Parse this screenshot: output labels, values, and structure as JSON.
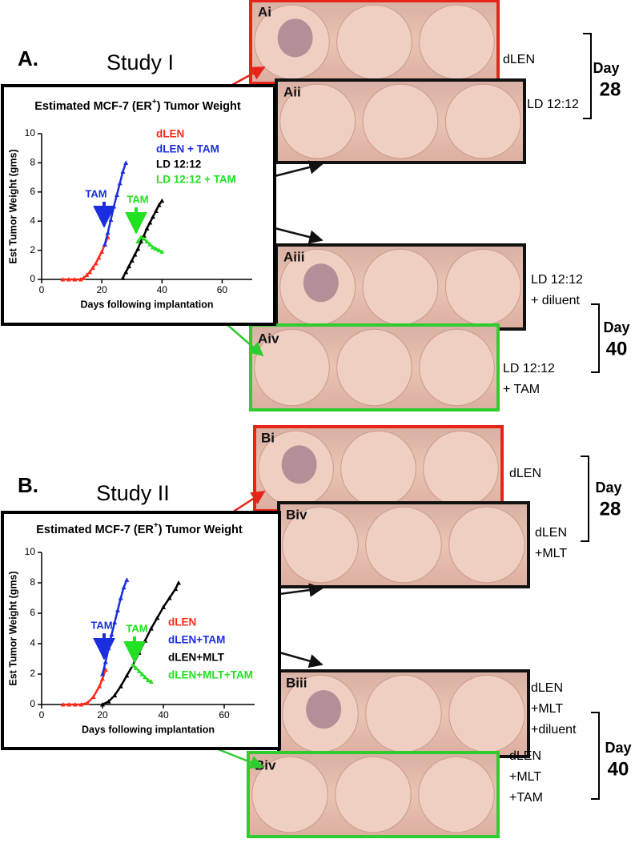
{
  "chart_data": [
    {
      "type": "line",
      "title_parts": [
        "Estimated MCF-7 (ER",
        "+",
        ") Tumor Weight"
      ],
      "y_label": "Est Tumor Weight (gms)",
      "x_label": "Days following implantation",
      "xlim": [
        0,
        70
      ],
      "xticks": [
        0,
        20,
        40,
        60
      ],
      "ylim": [
        0,
        10
      ],
      "yticks": [
        0,
        2,
        4,
        6,
        8,
        10
      ],
      "series": [
        {
          "name": "dLEN",
          "color": "#ff2a1a",
          "x": [
            7,
            9,
            11,
            13,
            14,
            15,
            16,
            17,
            18,
            19,
            20,
            21,
            22
          ],
          "values": [
            0,
            0,
            0,
            0,
            0.1,
            0.3,
            0.5,
            0.8,
            1.1,
            1.5,
            1.9,
            2.4,
            2.9
          ]
        },
        {
          "name": "dLEN + TAM",
          "color": "#1a2ee0",
          "x": [
            21,
            22,
            23,
            24,
            25,
            26,
            27,
            28
          ],
          "values": [
            2.4,
            3.2,
            4.1,
            5.0,
            5.8,
            6.6,
            7.4,
            8.0
          ]
        },
        {
          "name": "LD 12:12",
          "color": "#000000",
          "x": [
            27,
            28,
            29,
            30,
            31,
            32,
            33,
            34,
            35,
            36,
            37,
            38,
            39,
            40
          ],
          "values": [
            0.1,
            0.5,
            0.9,
            1.3,
            1.7,
            2.1,
            2.6,
            3.0,
            3.5,
            3.9,
            4.3,
            4.7,
            5.1,
            5.4
          ]
        },
        {
          "name": "LD 12:12 + TAM",
          "color": "#22e022",
          "x": [
            32,
            33,
            34,
            35,
            36,
            37,
            38,
            39,
            40
          ],
          "values": [
            2.6,
            2.9,
            2.8,
            2.6,
            2.4,
            2.2,
            2.1,
            2.0,
            1.9
          ]
        }
      ],
      "annotations": [
        {
          "text": "TAM",
          "color": "#1a2ee0"
        },
        {
          "text": "TAM",
          "color": "#22e022"
        }
      ]
    },
    {
      "type": "line",
      "title_parts": [
        "Estimated MCF-7 (ER",
        "+",
        ") Tumor Weight"
      ],
      "y_label": "Est Tumor Weight (gms)",
      "x_label": "Days following implantation",
      "xlim": [
        0,
        70
      ],
      "xticks": [
        0,
        20,
        40,
        60
      ],
      "ylim": [
        0,
        10
      ],
      "yticks": [
        0,
        2,
        4,
        6,
        8,
        10
      ],
      "series": [
        {
          "name": "dLEN",
          "color": "#ff2a1a",
          "x": [
            7,
            9,
            11,
            13,
            15,
            17,
            19,
            20,
            21
          ],
          "values": [
            0,
            0,
            0,
            0,
            0.1,
            0.5,
            1.2,
            1.7,
            2.3
          ]
        },
        {
          "name": "dLEN+TAM",
          "color": "#1a2ee0",
          "x": [
            20,
            21,
            22,
            23,
            24,
            25,
            26,
            27,
            28
          ],
          "values": [
            2.0,
            2.8,
            3.7,
            4.6,
            5.4,
            6.2,
            7.0,
            7.7,
            8.2
          ]
        },
        {
          "name": "dLEN+MLT",
          "color": "#000000",
          "x": [
            20,
            22,
            24,
            26,
            28,
            30,
            32,
            34,
            36,
            38,
            40,
            42,
            44,
            45
          ],
          "values": [
            0,
            0.2,
            0.6,
            1.2,
            1.9,
            2.6,
            3.4,
            4.2,
            5.0,
            5.7,
            6.4,
            7.0,
            7.6,
            8.0
          ]
        },
        {
          "name": "dLEN+MLT+TAM",
          "color": "#22e022",
          "x": [
            30,
            31,
            32,
            33,
            34,
            35,
            36
          ],
          "values": [
            2.6,
            2.4,
            2.2,
            2.0,
            1.8,
            1.6,
            1.5
          ]
        }
      ],
      "annotations": [
        {
          "text": "TAM",
          "color": "#1a2ee0"
        },
        {
          "text": "TAM",
          "color": "#22e022"
        }
      ]
    }
  ],
  "panels": [
    {
      "label": "A.",
      "study": "Study I",
      "photos": [
        {
          "label": "Ai",
          "caption": [
            "dLEN"
          ]
        },
        {
          "label": "Aii",
          "caption": [
            "LD 12:12"
          ]
        },
        {
          "label": "Aiii",
          "caption": [
            "LD 12:12",
            "+ diluent"
          ]
        },
        {
          "label": "Aiv",
          "caption": [
            "LD 12:12",
            "+ TAM"
          ]
        }
      ],
      "days": [
        {
          "word": "Day",
          "number": "28"
        },
        {
          "word": "Day",
          "number": "40"
        }
      ]
    },
    {
      "label": "B.",
      "study": "Study II",
      "photos": [
        {
          "label": "Bi",
          "caption": [
            "dLEN"
          ]
        },
        {
          "label": "Biv",
          "caption": [
            "dLEN",
            "+MLT"
          ]
        },
        {
          "label": "Biii",
          "caption": [
            "dLEN",
            "+MLT",
            "+diluent"
          ]
        },
        {
          "label": "Biv",
          "caption": [
            "dLEN",
            "+MLT",
            "+TAM"
          ]
        }
      ],
      "days": [
        {
          "word": "Day",
          "number": "28"
        },
        {
          "word": "Day",
          "number": "40"
        }
      ]
    }
  ]
}
